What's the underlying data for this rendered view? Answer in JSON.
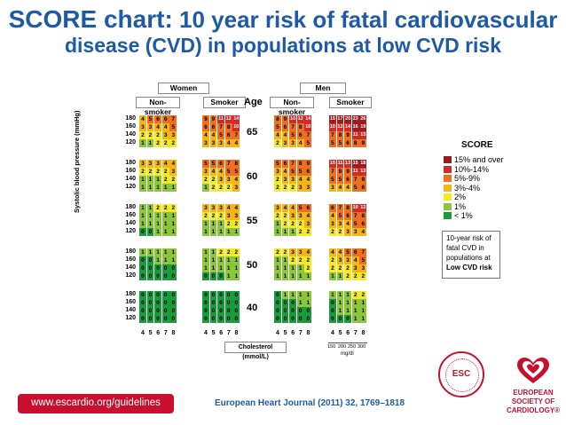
{
  "title": {
    "lead": "SCORE chart:",
    "rest": " 10 year risk of fatal cardiovascular",
    "line2": "disease (CVD) in populations at low CVD risk"
  },
  "headers": {
    "women": "Women",
    "men": "Men",
    "non_smoker": "Non-smoker",
    "smoker": "Smoker",
    "age": "Age"
  },
  "ages": [
    "65",
    "60",
    "55",
    "50",
    "40"
  ],
  "sbp_levels": [
    "180",
    "160",
    "140",
    "120"
  ],
  "sbp_axis_label": "Systolic blood pressure (mmHg)",
  "chol_ticks": [
    "4",
    "5",
    "6",
    "7",
    "8"
  ],
  "chol_axis_label": "Cholesterol (mmol/L)",
  "mgdl_ticks": [
    "150",
    "200",
    "250",
    "300"
  ],
  "mgdl_label": "mg/dl",
  "colors": {
    "c0": "#1a9a3c",
    "c1": "#8cc63f",
    "c2": "#f4ea2a",
    "c3": "#f6b41a",
    "c5": "#ed6f1f",
    "c10": "#d22a27",
    "c15": "#9e1b1e"
  },
  "legend": {
    "title": "SCORE",
    "items": [
      {
        "label": "15% and over",
        "color": "#9e1b1e"
      },
      {
        "label": "10%-14%",
        "color": "#d22a27"
      },
      {
        "label": "5%-9%",
        "color": "#ed6f1f"
      },
      {
        "label": "3%-4%",
        "color": "#f6b41a"
      },
      {
        "label": "2%",
        "color": "#f4ea2a"
      },
      {
        "label": "1%",
        "color": "#8cc63f"
      },
      {
        "label": "< 1%",
        "color": "#1a9a3c"
      }
    ],
    "note": [
      "10-year risk of",
      "fatal CVD in",
      "populations at",
      "Low CVD risk"
    ]
  },
  "blocks": {
    "women_non": [
      [
        [
          4,
          5,
          6,
          6,
          7
        ],
        [
          3,
          3,
          4,
          4,
          5
        ],
        [
          2,
          2,
          2,
          3,
          3
        ],
        [
          1,
          1,
          2,
          2,
          2
        ]
      ],
      [
        [
          3,
          3,
          3,
          4,
          4
        ],
        [
          2,
          2,
          2,
          2,
          3
        ],
        [
          1,
          1,
          1,
          2,
          2
        ],
        [
          1,
          1,
          1,
          1,
          1
        ]
      ],
      [
        [
          1,
          1,
          2,
          2,
          2
        ],
        [
          1,
          1,
          1,
          1,
          1
        ],
        [
          1,
          1,
          1,
          1,
          1
        ],
        [
          0,
          0,
          1,
          1,
          1
        ]
      ],
      [
        [
          1,
          1,
          1,
          1,
          1
        ],
        [
          0,
          0,
          1,
          1,
          1
        ],
        [
          0,
          0,
          0,
          0,
          0
        ],
        [
          0,
          0,
          0,
          0,
          0
        ]
      ],
      [
        [
          0,
          0,
          0,
          0,
          0
        ],
        [
          0,
          0,
          0,
          0,
          0
        ],
        [
          0,
          0,
          0,
          0,
          0
        ],
        [
          0,
          0,
          0,
          0,
          0
        ]
      ]
    ],
    "women_smk": [
      [
        [
          9,
          9,
          11,
          12,
          14
        ],
        [
          6,
          6,
          7,
          8,
          10
        ],
        [
          4,
          4,
          5,
          6,
          7
        ],
        [
          3,
          3,
          3,
          4,
          4
        ]
      ],
      [
        [
          5,
          5,
          6,
          7,
          8
        ],
        [
          3,
          4,
          4,
          5,
          5
        ],
        [
          2,
          2,
          3,
          3,
          4
        ],
        [
          1,
          2,
          2,
          2,
          3
        ]
      ],
      [
        [
          3,
          3,
          3,
          4,
          4
        ],
        [
          2,
          2,
          2,
          3,
          3
        ],
        [
          1,
          1,
          1,
          2,
          2
        ],
        [
          1,
          1,
          1,
          1,
          1
        ]
      ],
      [
        [
          1,
          1,
          2,
          2,
          2
        ],
        [
          1,
          1,
          1,
          1,
          1
        ],
        [
          1,
          1,
          1,
          1,
          1
        ],
        [
          0,
          0,
          0,
          1,
          1
        ]
      ],
      [
        [
          0,
          0,
          0,
          0,
          0
        ],
        [
          0,
          0,
          0,
          0,
          0
        ],
        [
          0,
          0,
          0,
          0,
          0
        ],
        [
          0,
          0,
          0,
          0,
          0
        ]
      ]
    ],
    "men_non": [
      [
        [
          8,
          9,
          10,
          12,
          14
        ],
        [
          5,
          6,
          7,
          8,
          10
        ],
        [
          4,
          4,
          5,
          6,
          7
        ],
        [
          2,
          3,
          3,
          4,
          5
        ]
      ],
      [
        [
          5,
          6,
          7,
          8,
          9
        ],
        [
          3,
          4,
          5,
          5,
          6
        ],
        [
          2,
          3,
          3,
          4,
          4
        ],
        [
          2,
          2,
          2,
          3,
          3
        ]
      ],
      [
        [
          3,
          4,
          4,
          5,
          6
        ],
        [
          2,
          2,
          3,
          3,
          4
        ],
        [
          1,
          2,
          2,
          2,
          3
        ],
        [
          1,
          1,
          1,
          2,
          2
        ]
      ],
      [
        [
          2,
          2,
          3,
          3,
          4
        ],
        [
          1,
          1,
          2,
          2,
          2
        ],
        [
          1,
          1,
          1,
          1,
          2
        ],
        [
          1,
          1,
          1,
          1,
          1
        ]
      ],
      [
        [
          0,
          1,
          1,
          1,
          1
        ],
        [
          0,
          0,
          0,
          1,
          1
        ],
        [
          0,
          0,
          0,
          0,
          0
        ],
        [
          0,
          0,
          0,
          0,
          0
        ]
      ]
    ],
    "men_smk": [
      [
        [
          15,
          17,
          20,
          23,
          26
        ],
        [
          10,
          12,
          14,
          16,
          19
        ],
        [
          7,
          8,
          9,
          11,
          13
        ],
        [
          5,
          5,
          6,
          8,
          9
        ]
      ],
      [
        [
          10,
          11,
          13,
          15,
          18
        ],
        [
          7,
          8,
          9,
          11,
          13
        ],
        [
          5,
          5,
          6,
          7,
          9
        ],
        [
          3,
          4,
          4,
          5,
          6
        ]
      ],
      [
        [
          6,
          7,
          8,
          10,
          12
        ],
        [
          4,
          5,
          6,
          7,
          8
        ],
        [
          3,
          3,
          4,
          5,
          6
        ],
        [
          2,
          2,
          3,
          3,
          4
        ]
      ],
      [
        [
          4,
          4,
          5,
          6,
          7
        ],
        [
          2,
          3,
          3,
          4,
          5
        ],
        [
          2,
          2,
          2,
          3,
          3
        ],
        [
          1,
          1,
          2,
          2,
          2
        ]
      ],
      [
        [
          1,
          1,
          1,
          2,
          2
        ],
        [
          0,
          1,
          1,
          1,
          1
        ],
        [
          0,
          1,
          1,
          1,
          1
        ],
        [
          0,
          0,
          0,
          1,
          1
        ]
      ]
    ]
  },
  "footer": {
    "url": "www.escardio.org/guidelines",
    "citation": "European Heart Journal (2011) 32, 1769–1818",
    "esc_lines": [
      "EUROPEAN",
      "SOCIETY OF",
      "CARDIOLOGY®"
    ],
    "seal_text": "ESC"
  }
}
